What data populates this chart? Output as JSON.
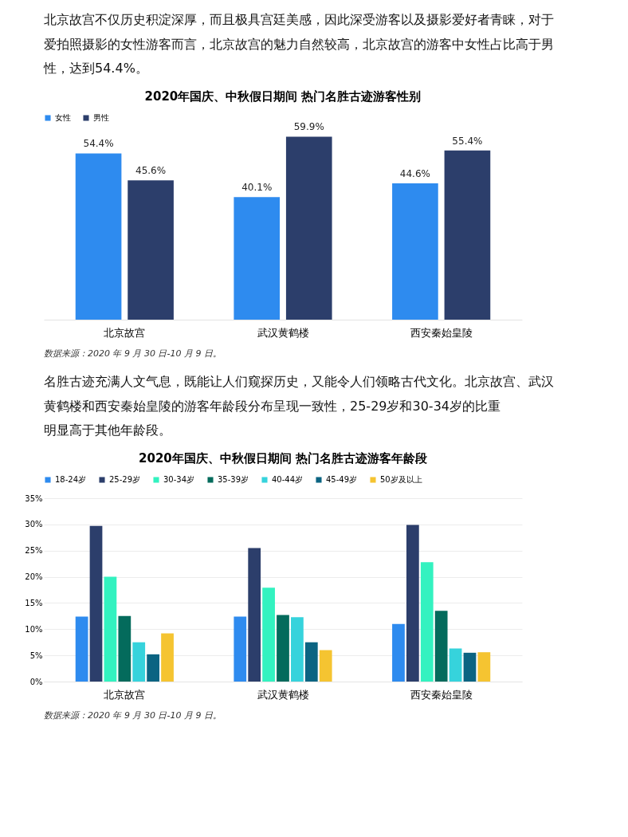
{
  "chart_data": [
    {
      "type": "bar",
      "title": "2020年国庆、中秋假日期间  热门名胜古迹游客性别",
      "annotations": [
        "北京故宫不仅历史积淀深厚，而且极具宫廷美感，因此深受游客以及摄影爱好者青睐，对于爱拍照摄影的女性游客而言，北京故宫的魅力自然较高，北京故宫的游客中女性占比高于男性，达到54.4%。",
        "数据来源：2020 年 9 月 30 日-10 月 9 日。"
      ],
      "categories": [
        "北京故宫",
        "武汉黄鹤楼",
        "西安秦始皇陵"
      ],
      "series": [
        {
          "name": "女性",
          "color": "#2e8bef",
          "values": [
            54.4,
            40.1,
            44.6
          ],
          "value_labels": [
            "54.4%",
            "40.1%",
            "44.6%"
          ]
        },
        {
          "name": "男性",
          "color": "#2c3e6b",
          "values": [
            45.6,
            59.9,
            55.4
          ],
          "value_labels": [
            "45.6%",
            "59.9%",
            "55.4%"
          ]
        }
      ],
      "legend": "top",
      "grid": false,
      "tick_labels": "x"
    },
    {
      "type": "bar",
      "title": "2020年国庆、中秋假日期间  热门名胜古迹游客年龄段",
      "annotations": [
        "名胜古迹充满人文气息，既能让人们窥探历史，又能令人们领略古代文化。北京故宫、武汉黄鹤楼和西安秦始皇陵的游客年龄段分布呈现一致性，25-29岁和30-34岁的比重明显高于其他年龄段。",
        "数据来源：2020 年 9 月 30 日-10 月 9 日。"
      ],
      "categories": [
        "北京故宫",
        "武汉黄鹤楼",
        "西安秦始皇陵"
      ],
      "series": [
        {
          "name": "18-24岁",
          "color": "#2e8bef",
          "values": [
            12.4,
            12.4,
            11.0
          ]
        },
        {
          "name": "25-29岁",
          "color": "#2c3e6b",
          "values": [
            29.7,
            25.5,
            29.9
          ]
        },
        {
          "name": "30-34岁",
          "color": "#33f2c0",
          "values": [
            20.0,
            17.9,
            22.8
          ]
        },
        {
          "name": "35-39岁",
          "color": "#046b5c",
          "values": [
            12.5,
            12.7,
            13.5
          ]
        },
        {
          "name": "40-44岁",
          "color": "#36d3dc",
          "values": [
            7.5,
            12.3,
            6.3
          ]
        },
        {
          "name": "45-49岁",
          "color": "#0b6482",
          "values": [
            5.2,
            7.5,
            5.5
          ]
        },
        {
          "name": "50岁及以上",
          "color": "#f5c431",
          "values": [
            9.2,
            6.0,
            5.6
          ]
        }
      ],
      "ylim": [
        0,
        35
      ],
      "yticks": [
        {
          "value": 0,
          "label": "0%"
        },
        {
          "value": 5,
          "label": "5%"
        },
        {
          "value": 10,
          "label": "10%"
        },
        {
          "value": 15,
          "label": "15%"
        },
        {
          "value": 20,
          "label": "20%"
        },
        {
          "value": 25,
          "label": "25%"
        },
        {
          "value": 30,
          "label": "30%"
        },
        {
          "value": 35,
          "label": "35%"
        }
      ],
      "legend": "top",
      "grid": "y"
    }
  ]
}
